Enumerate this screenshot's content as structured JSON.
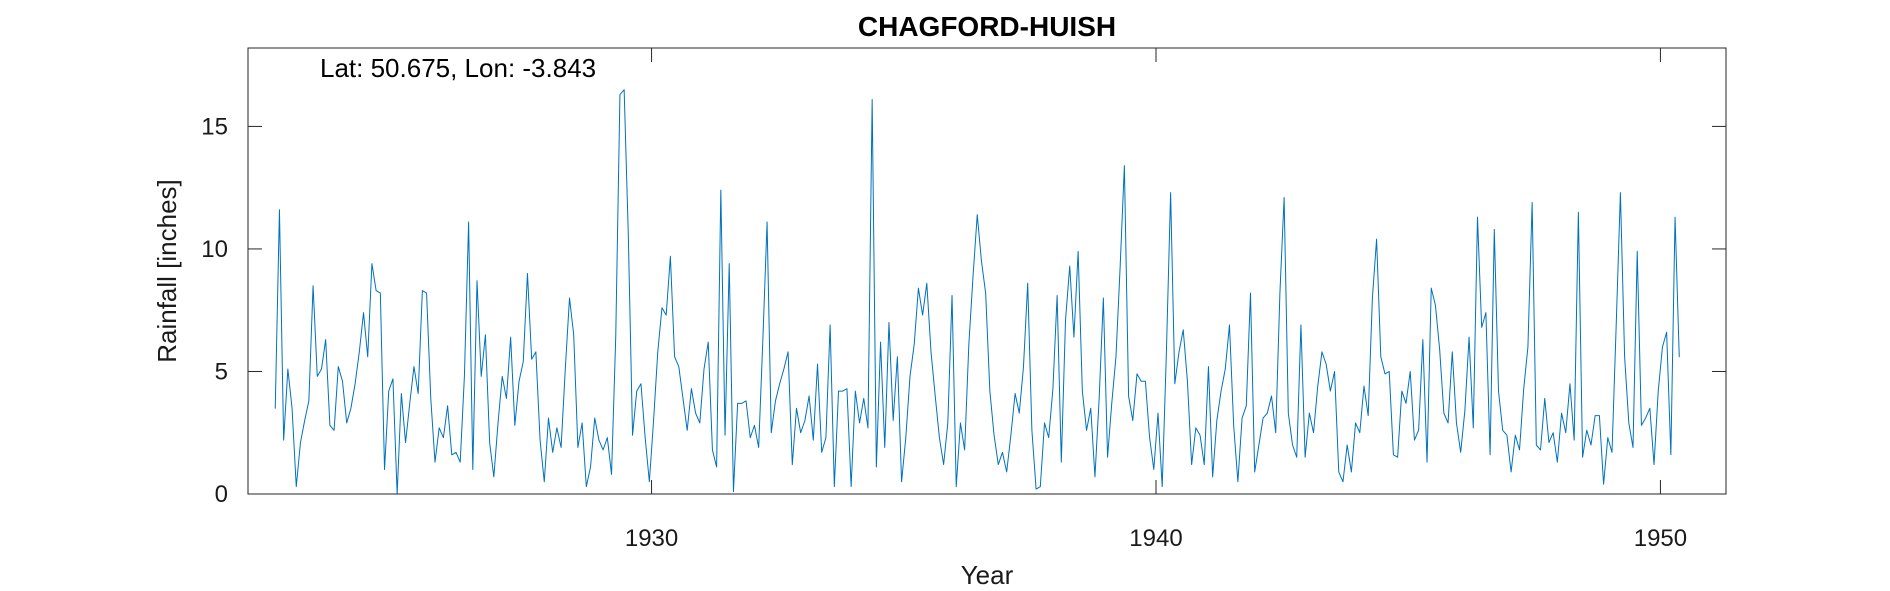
{
  "chart_data": {
    "type": "line",
    "title": "CHAGFORD-HUISH",
    "xlabel": "Year",
    "ylabel": "Rainfall [inches]",
    "annotation": "Lat: 50.675, Lon: -3.843",
    "xlim": [
      1922,
      1951.3
    ],
    "ylim": [
      0,
      18.2
    ],
    "x_ticks": [
      1930,
      1940,
      1950
    ],
    "y_ticks": [
      0,
      5,
      10,
      15
    ],
    "grid": false,
    "line_color": "#0072BD",
    "series": [
      {
        "x_start": 1922.54,
        "x_step": 0.0833333,
        "values": [
          3.5,
          11.6,
          2.2,
          5.1,
          3.5,
          0.3,
          2.1,
          3.0,
          3.8,
          8.5,
          4.8,
          5.1,
          6.3,
          2.8,
          2.6,
          5.2,
          4.6,
          2.9,
          3.5,
          4.5,
          5.8,
          7.4,
          5.6,
          9.4,
          8.3,
          8.2,
          1.0,
          4.2,
          4.7,
          0.0,
          4.1,
          2.1,
          3.7,
          5.2,
          4.1,
          8.3,
          8.2,
          3.9,
          1.3,
          2.7,
          2.3,
          3.6,
          1.6,
          1.7,
          1.3,
          4.8,
          11.1,
          1.0,
          8.7,
          4.8,
          6.5,
          2.1,
          0.7,
          2.9,
          4.8,
          3.9,
          6.4,
          2.8,
          4.6,
          5.4,
          9.0,
          5.5,
          5.8,
          2.2,
          0.5,
          3.1,
          1.7,
          2.7,
          1.9,
          5.1,
          8.0,
          6.5,
          1.9,
          2.9,
          0.3,
          1.1,
          3.1,
          2.2,
          1.8,
          2.3,
          0.8,
          6.4,
          16.3,
          16.5,
          10.5,
          2.4,
          4.2,
          4.5,
          2.3,
          0.5,
          3.0,
          5.8,
          7.6,
          7.3,
          9.7,
          5.6,
          5.2,
          3.9,
          2.6,
          4.3,
          3.3,
          2.9,
          5.1,
          6.2,
          1.8,
          1.1,
          12.4,
          2.4,
          9.4,
          0.1,
          3.7,
          3.7,
          3.8,
          2.3,
          2.8,
          1.9,
          6.3,
          11.1,
          2.5,
          3.8,
          4.5,
          5.1,
          5.8,
          1.2,
          3.5,
          2.5,
          3.0,
          4.0,
          2.2,
          5.3,
          1.7,
          2.3,
          6.9,
          0.3,
          4.2,
          4.2,
          4.3,
          0.3,
          4.2,
          2.9,
          3.9,
          2.7,
          16.1,
          1.1,
          6.2,
          1.9,
          7.0,
          3.0,
          5.6,
          0.5,
          2.3,
          4.8,
          6.1,
          8.4,
          7.3,
          8.6,
          5.8,
          4.0,
          2.3,
          1.2,
          2.9,
          8.1,
          0.3,
          2.9,
          1.8,
          6.1,
          8.9,
          11.4,
          9.5,
          8.2,
          4.2,
          2.4,
          1.2,
          1.7,
          0.9,
          2.4,
          4.1,
          3.3,
          5.2,
          8.6,
          2.6,
          0.2,
          0.3,
          2.9,
          2.3,
          4.3,
          8.1,
          1.3,
          7.1,
          9.3,
          6.4,
          9.9,
          4.2,
          2.6,
          3.5,
          0.7,
          3.9,
          8.0,
          1.5,
          3.7,
          5.6,
          9.3,
          13.4,
          4.0,
          3.0,
          4.9,
          4.6,
          4.6,
          2.3,
          1.0,
          3.3,
          0.3,
          5.8,
          12.3,
          4.5,
          5.8,
          6.7,
          4.6,
          1.2,
          2.7,
          2.4,
          1.2,
          5.2,
          0.7,
          3.0,
          4.2,
          5.1,
          6.9,
          2.8,
          0.5,
          3.1,
          3.6,
          8.2,
          0.9,
          2.0,
          3.1,
          3.3,
          4.0,
          2.5,
          8.2,
          12.1,
          3.3,
          2.0,
          1.5,
          6.9,
          1.5,
          3.3,
          2.5,
          4.4,
          5.8,
          5.3,
          4.2,
          5.0,
          0.9,
          0.5,
          2.0,
          0.9,
          2.9,
          2.5,
          4.4,
          3.2,
          8.0,
          10.4,
          5.6,
          4.9,
          5.0,
          1.6,
          1.5,
          4.2,
          3.7,
          5.0,
          2.2,
          2.6,
          6.3,
          1.3,
          8.4,
          7.7,
          5.9,
          3.3,
          2.9,
          5.8,
          2.9,
          1.7,
          3.4,
          6.4,
          2.7,
          11.3,
          6.8,
          7.4,
          1.6,
          10.8,
          4.2,
          2.6,
          2.4,
          0.9,
          2.4,
          1.8,
          4.3,
          6.0,
          11.9,
          2.0,
          1.8,
          3.9,
          2.1,
          2.5,
          1.3,
          3.3,
          2.5,
          4.5,
          2.2,
          11.5,
          1.5,
          2.6,
          2.0,
          3.2,
          3.2,
          0.4,
          2.3,
          1.7,
          6.9,
          12.3,
          5.6,
          2.9,
          1.9,
          9.9,
          2.8,
          3.1,
          3.5,
          1.2,
          4.2,
          6.0,
          6.6,
          1.6,
          11.3,
          5.6
        ]
      }
    ]
  }
}
